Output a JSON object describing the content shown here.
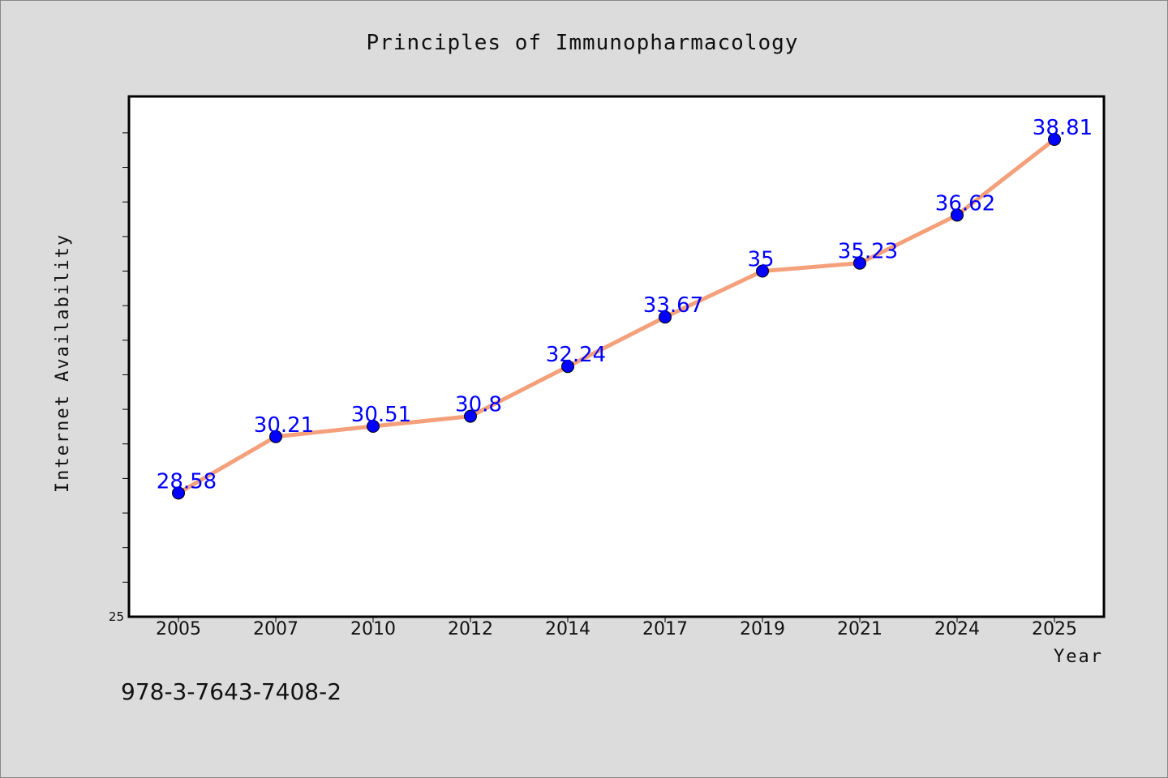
{
  "chart_data": {
    "type": "line",
    "title": "Principles of Immunopharmacology",
    "xlabel": "Year",
    "ylabel": "Internet Availability",
    "categories": [
      "2005",
      "2007",
      "2010",
      "2012",
      "2014",
      "2017",
      "2019",
      "2021",
      "2024",
      "2025"
    ],
    "series": [
      {
        "values": [
          28.58,
          30.21,
          30.51,
          30.8,
          32.24,
          33.67,
          35,
          35.23,
          36.62,
          38.81
        ],
        "labels": [
          "28.58",
          "30.21",
          "30.51",
          "30.8",
          "32.24",
          "33.67",
          "35",
          "35.23",
          "36.62",
          "38.81"
        ]
      }
    ],
    "ylim": [
      25,
      40
    ],
    "y_tick_labels": [
      "25"
    ],
    "grid": false,
    "legend": "none",
    "colors": {
      "line": "#f4a07a",
      "marker": "#0000ff",
      "data_label": "#0000ff",
      "background": "#dcdcdc",
      "plot_background": "#ffffff"
    }
  },
  "footer": {
    "isbn": "978-3-7643-7408-2"
  }
}
